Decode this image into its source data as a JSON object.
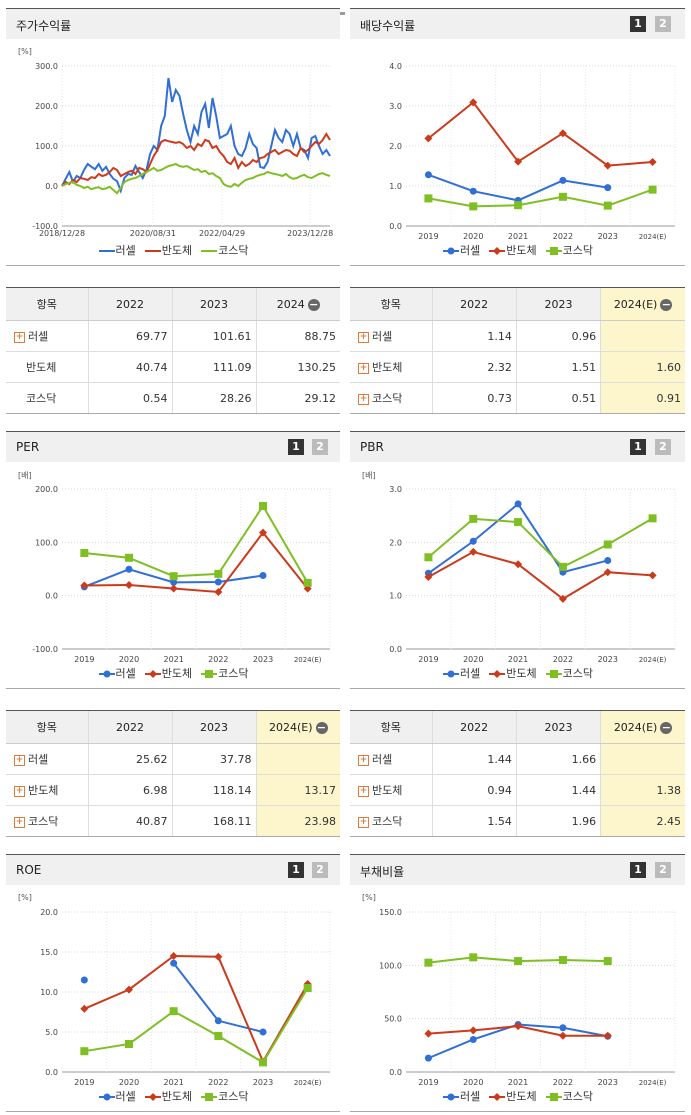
{
  "panels": [
    {
      "id": "stock",
      "title": "주가수익률",
      "unit": "[%]",
      "pages": [],
      "chart_data": {
        "type": "line",
        "title": "주가수익률",
        "ylabel": "[%]",
        "ylim": [
          -100,
          300
        ],
        "yticks": [
          "300.0",
          "200.0",
          "100.0",
          "0.0",
          "-100.0"
        ],
        "xticks": [
          "2018/12/28",
          "2020/08/31",
          "2022/04/29",
          "2023/12/28"
        ],
        "x_tick_frac": [
          0.0,
          0.339,
          0.597,
          0.926
        ],
        "series": [
          {
            "name": "러셀",
            "color": "#2f6fd6",
            "marker": "none",
            "values": [
              0,
              18,
              35,
              10,
              25,
              20,
              40,
              55,
              48,
              42,
              55,
              38,
              48,
              30,
              18,
              12,
              -12,
              20,
              30,
              28,
              50,
              35,
              20,
              40,
              80,
              100,
              90,
              150,
              175,
              270,
              210,
              240,
              225,
              180,
              140,
              110,
              150,
              130,
              185,
              205,
              145,
              220,
              175,
              120,
              125,
              130,
              150,
              100,
              80,
              75,
              95,
              130,
              105,
              95,
              48,
              45,
              60,
              100,
              140,
              120,
              110,
              140,
              130,
              100,
              130,
              95,
              90,
              70,
              120,
              125,
              100,
              80,
              90,
              75
            ]
          },
          {
            "name": "반도체",
            "color": "#cc3a1c",
            "marker": "none",
            "values": [
              0,
              10,
              5,
              15,
              10,
              20,
              18,
              15,
              22,
              20,
              30,
              25,
              28,
              35,
              45,
              40,
              25,
              30,
              35,
              38,
              30,
              45,
              42,
              35,
              55,
              75,
              90,
              110,
              115,
              112,
              110,
              108,
              110,
              105,
              95,
              100,
              90,
              105,
              100,
              115,
              112,
              95,
              100,
              85,
              75,
              60,
              55,
              70,
              45,
              60,
              50,
              55,
              65,
              60,
              70,
              72,
              80,
              85,
              90,
              80,
              85,
              90,
              88,
              80,
              75,
              95,
              85,
              90,
              100,
              110,
              105,
              115,
              130,
              115
            ]
          },
          {
            "name": "코스닥",
            "color": "#7fbf24",
            "marker": "none",
            "values": [
              0,
              5,
              8,
              10,
              3,
              0,
              -5,
              -2,
              -8,
              -5,
              -3,
              -8,
              -6,
              -2,
              -10,
              -18,
              -5,
              10,
              15,
              18,
              20,
              25,
              30,
              35,
              40,
              45,
              38,
              40,
              45,
              50,
              52,
              55,
              50,
              48,
              50,
              45,
              40,
              42,
              35,
              38,
              30,
              32,
              25,
              20,
              5,
              0,
              -2,
              5,
              0,
              8,
              15,
              18,
              20,
              25,
              28,
              30,
              35,
              32,
              30,
              28,
              25,
              30,
              22,
              18,
              20,
              25,
              28,
              22,
              20,
              25,
              30,
              32,
              28,
              25
            ]
          }
        ]
      },
      "table": {
        "header": {
          "label": "항목",
          "cols": [
            "2022",
            "2023",
            "2024"
          ]
        },
        "est_col": false,
        "rows": [
          {
            "name": "러셀",
            "plus": true,
            "values": [
              "69.77",
              "101.61",
              "88.75"
            ]
          },
          {
            "name": "반도체",
            "plus": false,
            "values": [
              "40.74",
              "111.09",
              "130.25"
            ]
          },
          {
            "name": "코스닥",
            "plus": false,
            "values": [
              "0.54",
              "28.26",
              "29.12"
            ]
          }
        ]
      }
    },
    {
      "id": "div",
      "title": "배당수익률",
      "unit": "",
      "pages": [
        "1",
        "2"
      ],
      "chart_data": {
        "type": "line",
        "title": "배당수익률",
        "ylim": [
          0,
          4
        ],
        "yticks": [
          "4.0",
          "3.0",
          "2.0",
          "1.0",
          "0.0"
        ],
        "categories": [
          "2019",
          "2020",
          "2021",
          "2022",
          "2023",
          "2024(E)"
        ],
        "series": [
          {
            "name": "러셀",
            "color": "#2f6fd6",
            "marker": "circle",
            "values": [
              1.28,
              0.87,
              0.64,
              1.14,
              0.96,
              null
            ]
          },
          {
            "name": "반도체",
            "color": "#cc3a1c",
            "marker": "diamond",
            "values": [
              2.19,
              3.09,
              1.61,
              2.32,
              1.51,
              1.6
            ]
          },
          {
            "name": "코스닥",
            "color": "#7fbf24",
            "marker": "square",
            "values": [
              0.69,
              0.49,
              0.52,
              0.73,
              0.51,
              0.91
            ]
          }
        ]
      },
      "table": {
        "header": {
          "label": "항목",
          "cols": [
            "2022",
            "2023",
            "2024(E)"
          ]
        },
        "est_col": true,
        "rows": [
          {
            "name": "러셀",
            "plus": true,
            "values": [
              "1.14",
              "0.96",
              ""
            ]
          },
          {
            "name": "반도체",
            "plus": true,
            "values": [
              "2.32",
              "1.51",
              "1.60"
            ]
          },
          {
            "name": "코스닥",
            "plus": true,
            "values": [
              "0.73",
              "0.51",
              "0.91"
            ]
          }
        ]
      }
    },
    {
      "id": "per",
      "title": "PER",
      "unit": "[배]",
      "pages": [
        "1",
        "2"
      ],
      "chart_data": {
        "type": "line",
        "title": "PER",
        "ylabel": "[배]",
        "ylim": [
          -100,
          200
        ],
        "yticks": [
          "200.0",
          "100.0",
          "0.0",
          "-100.0"
        ],
        "categories": [
          "2019",
          "2020",
          "2021",
          "2022",
          "2023",
          "2024(E)"
        ],
        "series": [
          {
            "name": "러셀",
            "color": "#2f6fd6",
            "marker": "circle",
            "values": [
              16.5,
              49.5,
              25.0,
              25.62,
              37.78,
              null
            ]
          },
          {
            "name": "반도체",
            "color": "#cc3a1c",
            "marker": "diamond",
            "values": [
              19.0,
              20.0,
              13.5,
              6.98,
              118.14,
              13.17
            ]
          },
          {
            "name": "코스닥",
            "color": "#7fbf24",
            "marker": "square",
            "values": [
              80.0,
              71.0,
              36.5,
              40.87,
              168.11,
              23.98
            ]
          }
        ]
      },
      "table": {
        "header": {
          "label": "항목",
          "cols": [
            "2022",
            "2023",
            "2024(E)"
          ]
        },
        "est_col": true,
        "rows": [
          {
            "name": "러셀",
            "plus": true,
            "values": [
              "25.62",
              "37.78",
              ""
            ]
          },
          {
            "name": "반도체",
            "plus": true,
            "values": [
              "6.98",
              "118.14",
              "13.17"
            ]
          },
          {
            "name": "코스닥",
            "plus": true,
            "values": [
              "40.87",
              "168.11",
              "23.98"
            ]
          }
        ]
      }
    },
    {
      "id": "pbr",
      "title": "PBR",
      "unit": "[배]",
      "pages": [
        "1",
        "2"
      ],
      "chart_data": {
        "type": "line",
        "title": "PBR",
        "ylabel": "[배]",
        "ylim": [
          0,
          3
        ],
        "yticks": [
          "3.0",
          "2.0",
          "1.0",
          "0.0"
        ],
        "categories": [
          "2019",
          "2020",
          "2021",
          "2022",
          "2023",
          "2024(E)"
        ],
        "series": [
          {
            "name": "러셀",
            "color": "#2f6fd6",
            "marker": "circle",
            "values": [
              1.42,
              2.02,
              2.72,
              1.44,
              1.66,
              null
            ]
          },
          {
            "name": "반도체",
            "color": "#cc3a1c",
            "marker": "diamond",
            "values": [
              1.35,
              1.82,
              1.59,
              0.94,
              1.44,
              1.38
            ]
          },
          {
            "name": "코스닥",
            "color": "#7fbf24",
            "marker": "square",
            "values": [
              1.72,
              2.44,
              2.38,
              1.54,
              1.96,
              2.45
            ]
          }
        ]
      },
      "table": {
        "header": {
          "label": "항목",
          "cols": [
            "2022",
            "2023",
            "2024(E)"
          ]
        },
        "est_col": true,
        "rows": [
          {
            "name": "러셀",
            "plus": true,
            "values": [
              "1.44",
              "1.66",
              ""
            ]
          },
          {
            "name": "반도체",
            "plus": true,
            "values": [
              "0.94",
              "1.44",
              "1.38"
            ]
          },
          {
            "name": "코스닥",
            "plus": true,
            "values": [
              "1.54",
              "1.96",
              "2.45"
            ]
          }
        ]
      }
    },
    {
      "id": "roe",
      "title": "ROE",
      "unit": "[%]",
      "pages": [
        "1",
        "2"
      ],
      "chart_data": {
        "type": "line",
        "title": "ROE",
        "ylabel": "[%]",
        "ylim": [
          0,
          20
        ],
        "yticks": [
          "20.0",
          "15.0",
          "10.0",
          "5.0",
          "0.0"
        ],
        "categories": [
          "2019",
          "2020",
          "2021",
          "2022",
          "2023",
          "2024(E)"
        ],
        "series": [
          {
            "name": "러셀",
            "color": "#2f6fd6",
            "marker": "circle",
            "values": [
              11.5,
              null,
              13.6,
              6.4,
              5.0,
              null
            ]
          },
          {
            "name": "반도체",
            "color": "#cc3a1c",
            "marker": "diamond",
            "values": [
              7.9,
              10.3,
              14.5,
              14.4,
              1.3,
              11.0
            ]
          },
          {
            "name": "코스닥",
            "color": "#7fbf24",
            "marker": "square",
            "values": [
              2.6,
              3.5,
              7.6,
              4.5,
              1.2,
              10.5
            ]
          }
        ]
      }
    },
    {
      "id": "debt",
      "title": "부채비율",
      "unit": "[%]",
      "pages": [
        "1",
        "2"
      ],
      "chart_data": {
        "type": "line",
        "title": "부채비율",
        "ylabel": "[%]",
        "ylim": [
          0,
          150
        ],
        "yticks": [
          "150.0",
          "100.0",
          "50.0",
          "0.0"
        ],
        "categories": [
          "2019",
          "2020",
          "2021",
          "2022",
          "2023",
          "2024(E)"
        ],
        "series": [
          {
            "name": "러셀",
            "color": "#2f6fd6",
            "marker": "circle",
            "values": [
              13.0,
              30.5,
              44.5,
              41.5,
              33.5,
              null
            ]
          },
          {
            "name": "반도체",
            "color": "#cc3a1c",
            "marker": "diamond",
            "values": [
              36.0,
              39.0,
              43.0,
              34.0,
              34.0,
              null
            ]
          },
          {
            "name": "코스닥",
            "color": "#7fbf24",
            "marker": "square",
            "values": [
              102.5,
              107.5,
              104.0,
              105.0,
              104.0,
              null
            ]
          }
        ]
      }
    }
  ]
}
